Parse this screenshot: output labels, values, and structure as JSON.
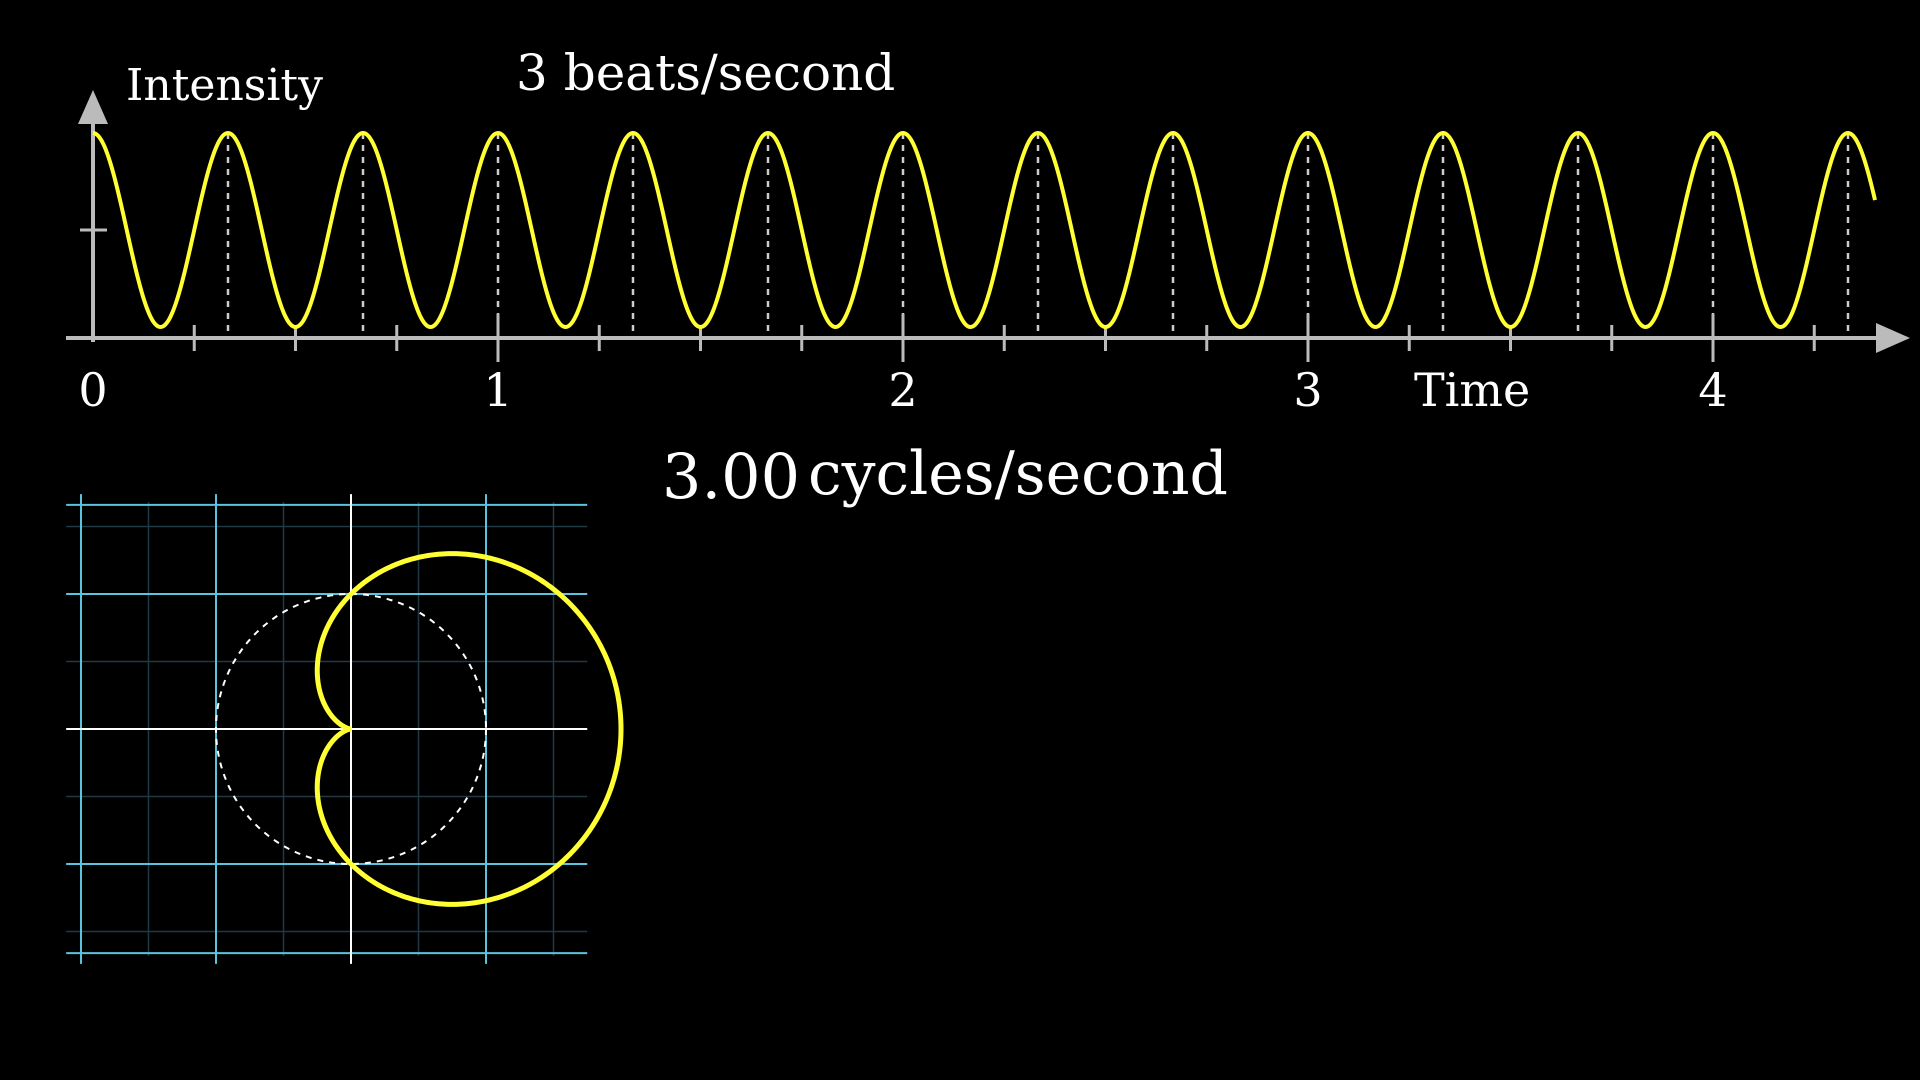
{
  "top_graph": {
    "y_axis_label": "Intensity",
    "x_axis_label": "Time",
    "title": "3 beats/second",
    "frequency_hz": 3,
    "time_range": [
      0,
      4.4
    ],
    "x_tick_labels": [
      "0",
      "1",
      "2",
      "3",
      "4"
    ],
    "x_tick_values": [
      0,
      1,
      2,
      3,
      4
    ],
    "curve_color": "#ffff33",
    "axis_color": "#bbbbbb"
  },
  "winding": {
    "value": "3.00",
    "unit_label": "cycles/second",
    "winding_frequency": 3.0,
    "curve_color": "#ffff33",
    "grid_color": "#58c4dd",
    "reference_circle": "dashed-white"
  }
}
